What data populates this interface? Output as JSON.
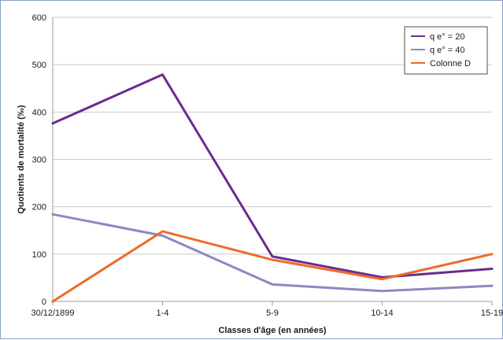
{
  "chart_data": {
    "type": "line",
    "title": "",
    "xlabel": "Classes d'âge (en années)",
    "ylabel": "Quotients de mortalité (‰)",
    "categories": [
      "30/12/1899",
      "1-4",
      "5-9",
      "10-14",
      "15-19"
    ],
    "ylim": [
      0,
      600
    ],
    "yticks": [
      0,
      100,
      200,
      300,
      400,
      500,
      600
    ],
    "grid": "horizontal",
    "legend_position": "top-right",
    "series": [
      {
        "name": "q e° = 20",
        "color": "#6a2c8f",
        "values": [
          376,
          479,
          95,
          51,
          69
        ]
      },
      {
        "name": "q e° = 40",
        "color": "#8b88c2",
        "values": [
          184,
          139,
          36,
          22,
          33
        ]
      },
      {
        "name": "Colonne D",
        "color": "#ee6a2a",
        "values": [
          0,
          148,
          88,
          47,
          100
        ]
      }
    ]
  }
}
